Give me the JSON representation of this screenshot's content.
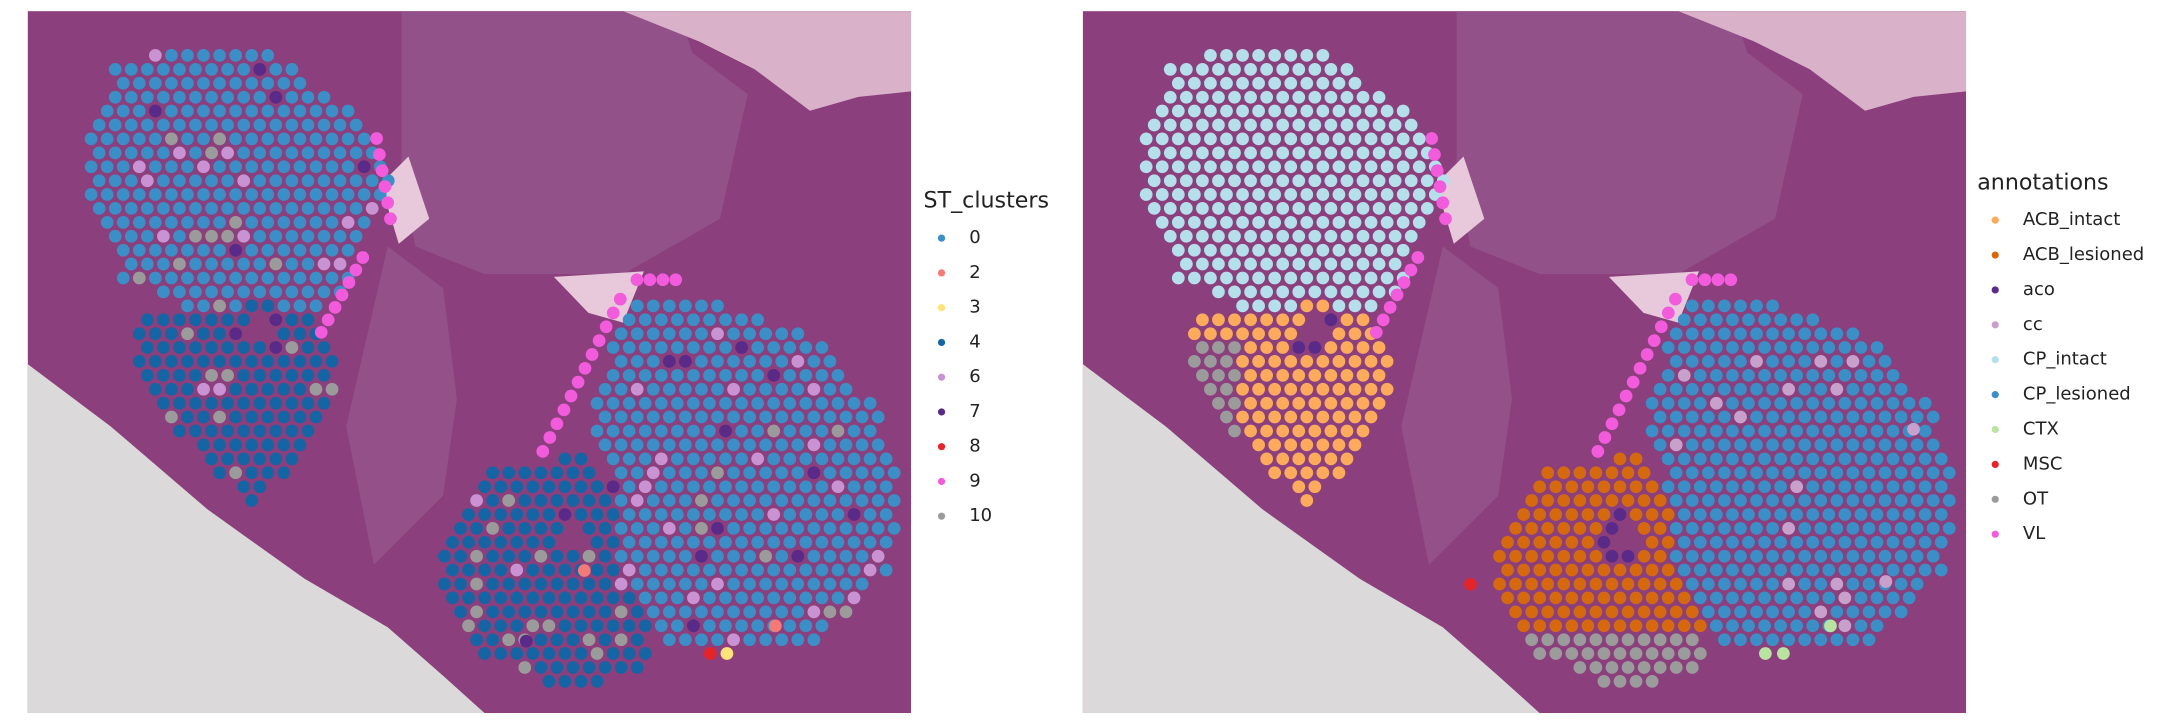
{
  "chart_data": [
    {
      "type": "spatial",
      "legend_title": "ST_clusters",
      "series": [
        {
          "name": "0",
          "color": "#3b8fc6"
        },
        {
          "name": "2",
          "color": "#f47a78"
        },
        {
          "name": "3",
          "color": "#ffe27a"
        },
        {
          "name": "4",
          "color": "#1565a5"
        },
        {
          "name": "6",
          "color": "#c992d2"
        },
        {
          "name": "7",
          "color": "#5a2a88"
        },
        {
          "name": "8",
          "color": "#e3242b"
        },
        {
          "name": "9",
          "color": "#f25bdc"
        },
        {
          "name": "10",
          "color": "#9b9b9b"
        }
      ]
    },
    {
      "type": "spatial",
      "legend_title": "annotations",
      "series": [
        {
          "name": "ACB_intact",
          "color": "#fcaa5c"
        },
        {
          "name": "ACB_lesioned",
          "color": "#d4690f"
        },
        {
          "name": "aco",
          "color": "#5a2a88"
        },
        {
          "name": "cc",
          "color": "#c8a0cc"
        },
        {
          "name": "CP_intact",
          "color": "#b4dfeb"
        },
        {
          "name": "CP_lesioned",
          "color": "#3b8fc6"
        },
        {
          "name": "CTX",
          "color": "#b9e3a0"
        },
        {
          "name": "MSC",
          "color": "#e3242b"
        },
        {
          "name": "OT",
          "color": "#9b9b9b"
        },
        {
          "name": "VL",
          "color": "#f25bdc"
        }
      ]
    }
  ]
}
